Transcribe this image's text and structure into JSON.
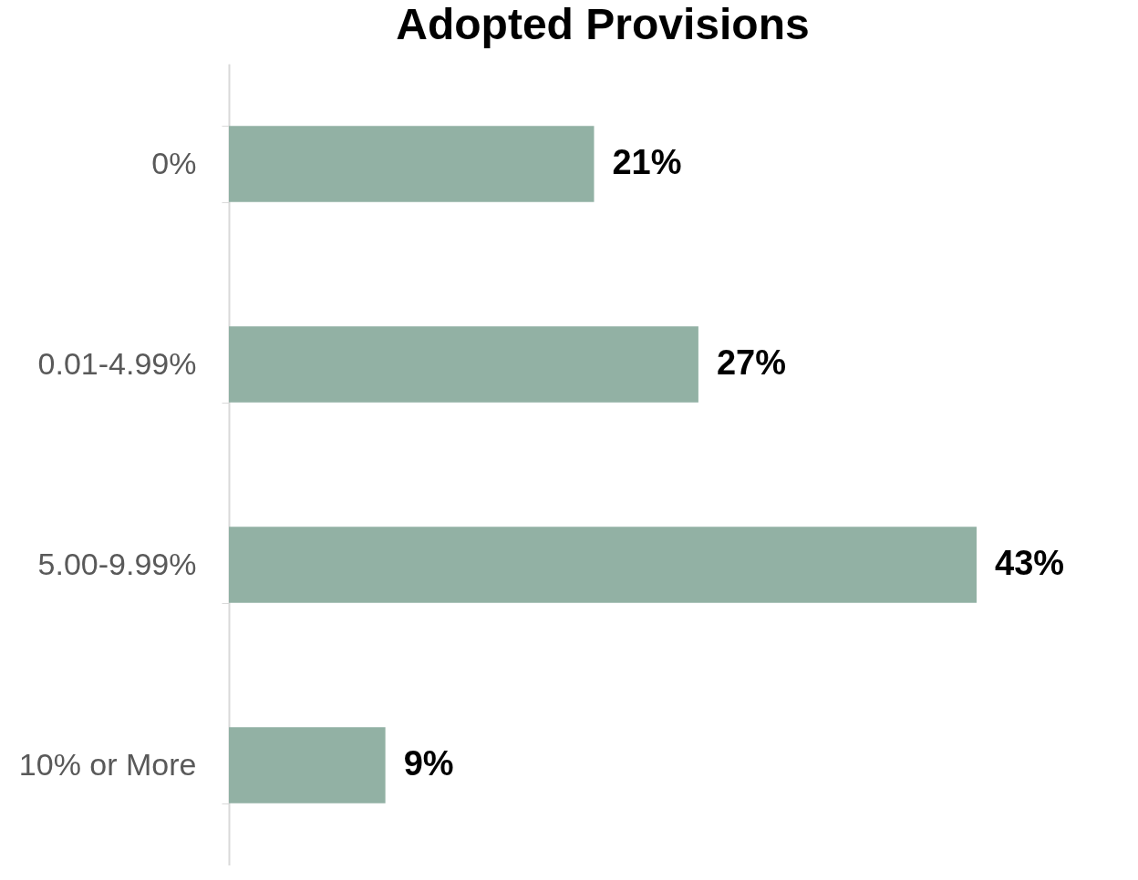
{
  "chart_data": {
    "type": "bar",
    "orientation": "horizontal",
    "title": "Adopted Provisions",
    "categories": [
      "0%",
      "0.01-4.99%",
      "5.00-9.99%",
      "10% or More"
    ],
    "values": [
      21,
      27,
      43,
      9
    ],
    "value_labels": [
      "21%",
      "27%",
      "43%",
      "9%"
    ],
    "color": "#92b1a4"
  }
}
